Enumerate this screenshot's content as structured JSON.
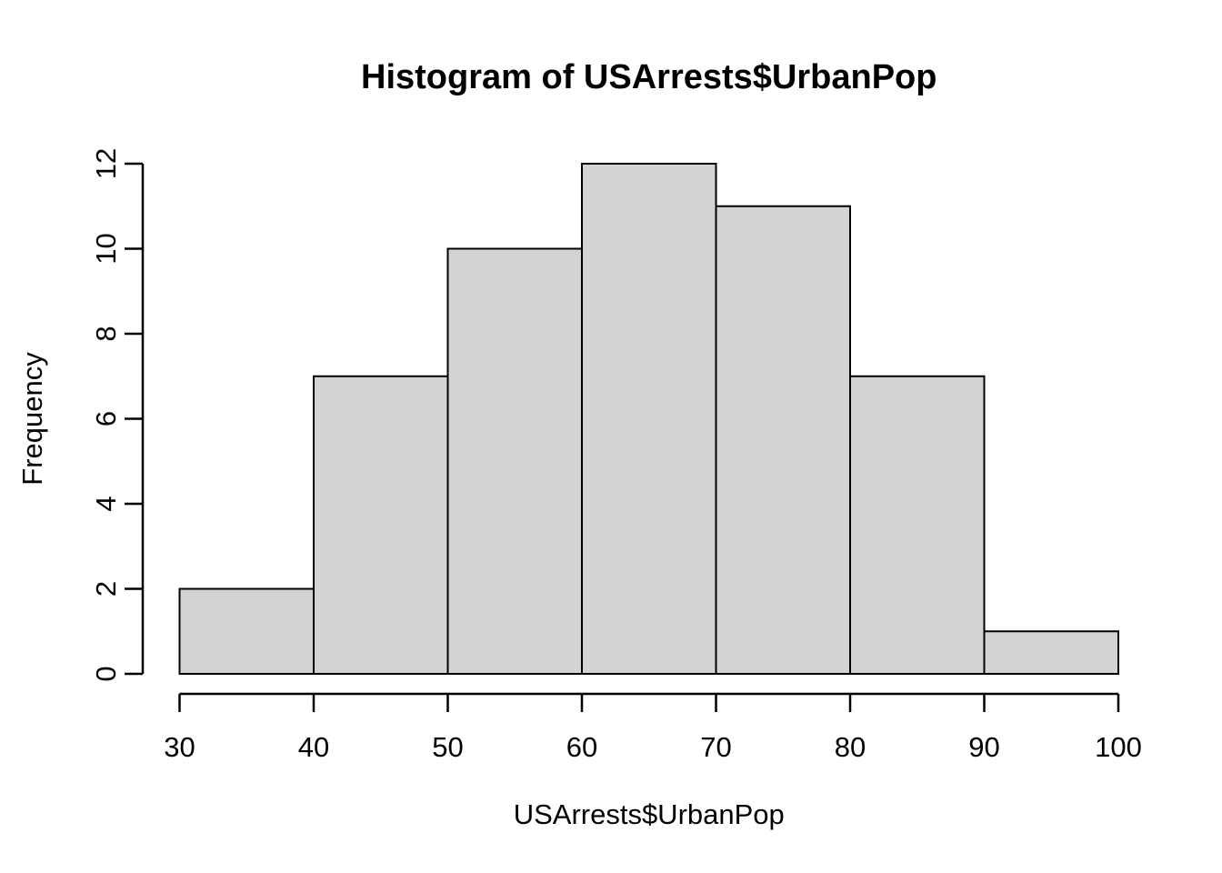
{
  "chart_data": {
    "type": "bar",
    "subtype": "histogram",
    "title": "Histogram of USArrests$UrbanPop",
    "xlabel": "USArrests$UrbanPop",
    "ylabel": "Frequency",
    "bin_edges": [
      30,
      40,
      50,
      60,
      70,
      80,
      90,
      100
    ],
    "counts": [
      2,
      7,
      10,
      12,
      11,
      7,
      1
    ],
    "categories": [
      "30-40",
      "40-50",
      "50-60",
      "60-70",
      "70-80",
      "80-90",
      "90-100"
    ],
    "xticks": [
      30,
      40,
      50,
      60,
      70,
      80,
      90,
      100
    ],
    "yticks": [
      0,
      2,
      4,
      6,
      8,
      10,
      12
    ],
    "xlim": [
      30,
      100
    ],
    "ylim": [
      0,
      12
    ],
    "grid": false,
    "legend": false,
    "colors": {
      "bar_fill": "#d3d3d3",
      "bar_stroke": "#000000",
      "axis": "#000000",
      "text": "#000000",
      "background": "#ffffff"
    }
  }
}
